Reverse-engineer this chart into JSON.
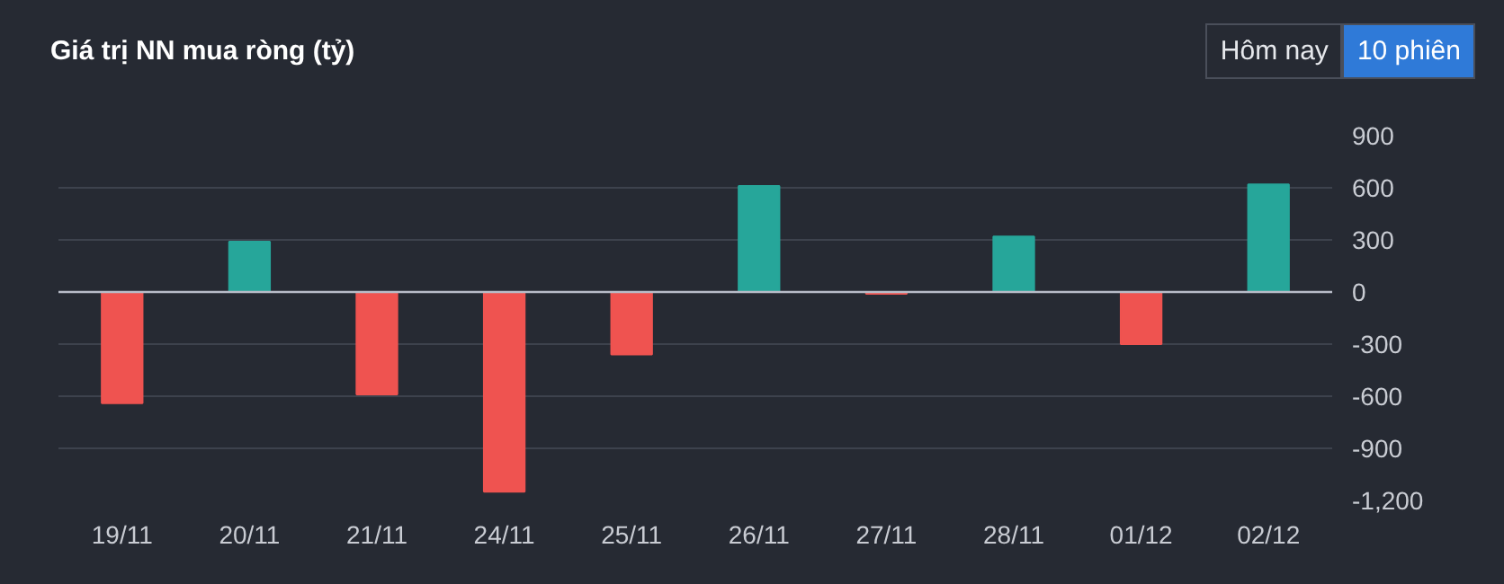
{
  "chart_data": {
    "type": "bar",
    "title": "Giá trị NN mua ròng (tỷ)",
    "annotations": [
      "Hôm nay",
      "10 phiên"
    ],
    "categories": [
      "19/11",
      "20/11",
      "21/11",
      "24/11",
      "25/11",
      "26/11",
      "27/11",
      "28/11",
      "01/12",
      "02/12"
    ],
    "values": [
      -640,
      290,
      -590,
      -1150,
      -360,
      610,
      -10,
      320,
      -300,
      620
    ],
    "colors": [
      "#ef5350",
      "#26a69a",
      "#ef5350",
      "#ef5350",
      "#ef5350",
      "#26a69a",
      "#ef5350",
      "#26a69a",
      "#ef5350",
      "#26a69a"
    ],
    "ylim": [
      -1200,
      900
    ],
    "yticks": [
      {
        "value": -1200,
        "label": "-1,200"
      },
      -900,
      -600,
      -300,
      0,
      300,
      600,
      900
    ],
    "grid": "y"
  }
}
